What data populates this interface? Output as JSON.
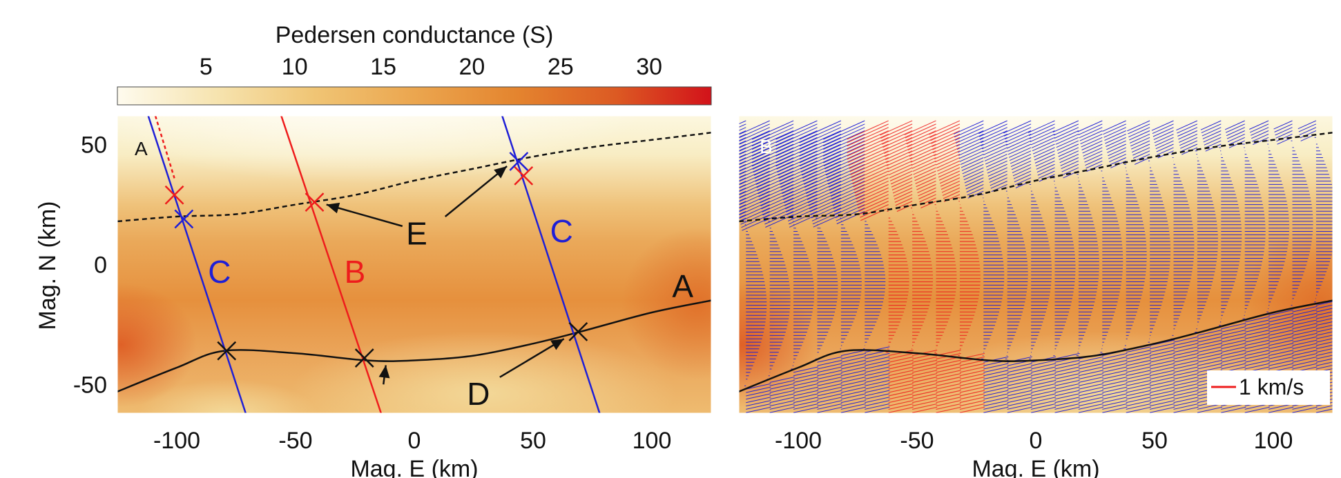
{
  "colorbar": {
    "label": "Pedersen conductance (S)",
    "ticks": [
      "5",
      "10",
      "15",
      "20",
      "25",
      "30"
    ],
    "tick_values": [
      5,
      10,
      15,
      20,
      25,
      30
    ],
    "range": [
      0,
      33.5
    ],
    "colors": [
      "#fefbee",
      "#f6e3ae",
      "#f0c575",
      "#eba64f",
      "#e4852f",
      "#dc5a23",
      "#d2121a"
    ]
  },
  "chart_data": [
    {
      "type": "heatmap",
      "panel_label": "A",
      "xlabel": "Mag. E (km)",
      "ylabel": "Mag. N (km)",
      "xlim": [
        -125,
        125
      ],
      "ylim": [
        -62,
        62
      ],
      "xticks": [
        "-100",
        "-50",
        "0",
        "50",
        "100"
      ],
      "xtick_values": [
        -100,
        -50,
        0,
        50,
        100
      ],
      "yticks": [
        "50",
        "0",
        "-50"
      ],
      "ytick_values": [
        50,
        0,
        -50
      ],
      "boundaries": {
        "dashed": {
          "x": [
            -125,
            -100,
            -75,
            -50,
            -25,
            0,
            25,
            50,
            75,
            100,
            125
          ],
          "y": [
            18,
            20,
            21,
            25,
            29,
            35,
            40,
            45,
            49,
            52,
            55
          ]
        },
        "solid": {
          "x": [
            -125,
            -100,
            -80,
            -50,
            -20,
            0,
            25,
            50,
            70,
            100,
            125
          ],
          "y": [
            -53,
            -43,
            -36,
            -37,
            -40,
            -40,
            -38,
            -33,
            -28,
            -20,
            -15
          ]
        }
      },
      "lines": [
        {
          "name": "C",
          "color": "#1f1fd6",
          "x": [
            -112,
            -71
          ],
          "y": [
            62,
            -62
          ]
        },
        {
          "name": "B",
          "color": "#ee1c1c",
          "x": [
            -56,
            -14
          ],
          "y": [
            62,
            -62
          ]
        },
        {
          "name": "C",
          "color": "#1f1fd6",
          "x": [
            37,
            78
          ],
          "y": [
            62,
            -62
          ]
        }
      ],
      "markers": [
        {
          "type": "x",
          "color": "#1f1fd6",
          "x": -97,
          "y": 19
        },
        {
          "type": "x",
          "color": "#ee1c1c",
          "x": -101,
          "y": 29
        },
        {
          "type": "x",
          "color": "#ee1c1c",
          "x": -42,
          "y": 26
        },
        {
          "type": "x",
          "color": "#1f1fd6",
          "x": 44,
          "y": 43
        },
        {
          "type": "x",
          "color": "#ee1c1c",
          "x": 46,
          "y": 37
        },
        {
          "type": "x",
          "color": "#111111",
          "x": -79,
          "y": -36
        },
        {
          "type": "x",
          "color": "#111111",
          "x": -21,
          "y": -39
        },
        {
          "type": "x",
          "color": "#111111",
          "x": 69,
          "y": -28
        }
      ],
      "annotations": [
        {
          "text": "C",
          "color": "#1f1fd6",
          "x": -82,
          "y": -3
        },
        {
          "text": "B",
          "color": "#ee1c1c",
          "x": -25,
          "y": -3
        },
        {
          "text": "C",
          "color": "#1f1fd6",
          "x": 62,
          "y": 14
        },
        {
          "text": "A",
          "color": "#111111",
          "x": 113,
          "y": -9
        },
        {
          "text": "E",
          "color": "#111111",
          "x": 1,
          "y": 13
        },
        {
          "text": "D",
          "color": "#111111",
          "x": 27,
          "y": -54
        }
      ],
      "arrows": [
        {
          "from": [
            -5,
            16
          ],
          "to": [
            -37,
            25
          ]
        },
        {
          "from": [
            13,
            20
          ],
          "to": [
            39,
            41
          ]
        },
        {
          "from": [
            -13,
            -50
          ],
          "to": [
            -12,
            -42
          ]
        },
        {
          "from": [
            36,
            -47
          ],
          "to": [
            63,
            -31
          ]
        }
      ]
    },
    {
      "type": "heatmap",
      "panel_label": "B",
      "xlabel": "Mag. E (km)",
      "ylabel": "",
      "xlim": [
        -125,
        125
      ],
      "ylim": [
        -62,
        62
      ],
      "xticks": [
        "-100",
        "-50",
        "0",
        "50",
        "100"
      ],
      "xtick_values": [
        -100,
        -50,
        0,
        50,
        100
      ],
      "legend": {
        "label": "1 km/s",
        "color": "#ee1c1c",
        "placement": "bottom-right"
      },
      "vector_field": {
        "color": "#1f1fd6",
        "highlight_color": "#ee1c1c",
        "highlight_x": [
          -68,
          -25
        ]
      }
    }
  ]
}
